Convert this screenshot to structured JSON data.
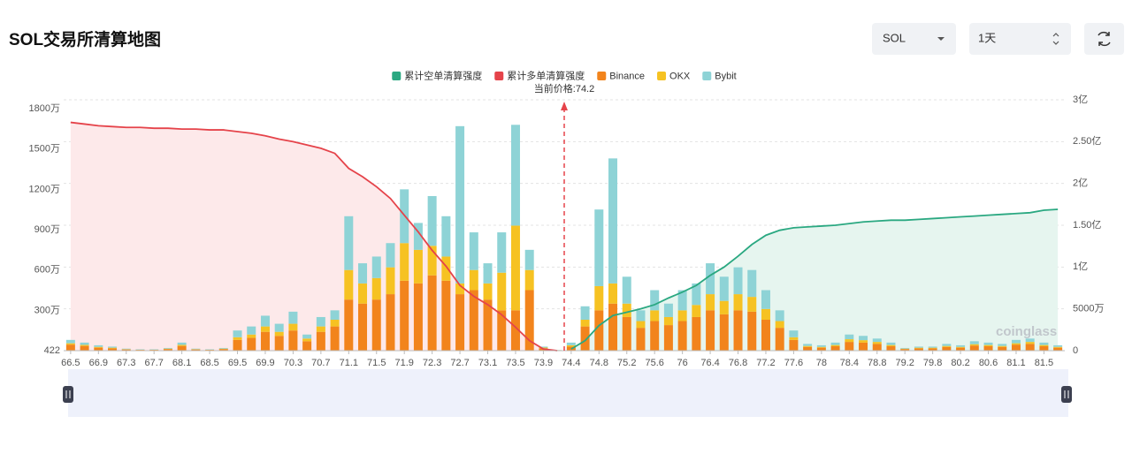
{
  "header": {
    "title": "SOL交易所清算地图"
  },
  "controls": {
    "symbol": "SOL",
    "interval": "1天"
  },
  "chart_data": {
    "type": "bar",
    "stacked": true,
    "annotation": "当前价格:74.2",
    "watermark": "coinglass",
    "categories": [
      "66.5",
      null,
      "66.9",
      null,
      "67.3",
      null,
      "67.7",
      null,
      "68.1",
      null,
      "68.5",
      null,
      "69.5",
      null,
      "69.9",
      null,
      "70.3",
      null,
      "70.7",
      null,
      "71.1",
      null,
      "71.5",
      null,
      "71.9",
      null,
      "72.3",
      null,
      "72.7",
      null,
      "73.1",
      null,
      "73.5",
      null,
      "73.9",
      null,
      "74.4",
      null,
      "74.8",
      null,
      "75.2",
      null,
      "75.6",
      null,
      "76",
      null,
      "76.4",
      null,
      "76.8",
      null,
      "77.2",
      null,
      "77.6",
      null,
      "78",
      null,
      "78.4",
      null,
      "78.8",
      null,
      "79.2",
      null,
      "79.8",
      null,
      "80.2",
      null,
      "80.6",
      null,
      "81.1",
      null,
      "81.5",
      null
    ],
    "ylim": [
      422,
      18660000
    ],
    "yticks": [
      422,
      {
        "value": 3000000,
        "label": "300万"
      },
      {
        "value": 6000000,
        "label": "600万"
      },
      {
        "value": 9000000,
        "label": "900万"
      },
      {
        "value": 12000000,
        "label": "1200万"
      },
      {
        "value": 15000000,
        "label": "1500万"
      },
      {
        "value": 18000000,
        "label": "1800万"
      }
    ],
    "y2lim": [
      0,
      300000000
    ],
    "y2ticks": [
      0,
      {
        "value": 50000000,
        "label": "5000万"
      },
      {
        "value": 100000000,
        "label": "1亿"
      },
      {
        "value": 150000000,
        "label": "1.50亿"
      },
      {
        "value": 200000000,
        "label": "2亿"
      },
      {
        "value": 250000000,
        "label": "2.50亿"
      },
      {
        "value": 300000000,
        "label": "3亿"
      }
    ],
    "grid": true,
    "series": [
      {
        "name": "累计空单清算强度",
        "type": "line",
        "axis": "y2",
        "color": "#2aa881",
        "fill": "#e6f5ef",
        "values": [
          null,
          null,
          null,
          null,
          null,
          null,
          null,
          null,
          null,
          null,
          null,
          null,
          null,
          null,
          null,
          null,
          null,
          null,
          null,
          null,
          null,
          null,
          null,
          null,
          null,
          null,
          null,
          null,
          null,
          null,
          null,
          null,
          null,
          null,
          null,
          null,
          2000000,
          12000000,
          30000000,
          42000000,
          46000000,
          50000000,
          55000000,
          63000000,
          70000000,
          78000000,
          90000000,
          100000000,
          113000000,
          127000000,
          138000000,
          144000000,
          147000000,
          148000000,
          149000000,
          150000000,
          152000000,
          154000000,
          155000000,
          156000000,
          156000000,
          157000000,
          158000000,
          159000000,
          160000000,
          161000000,
          162000000,
          163000000,
          164000000,
          165000000,
          168000000,
          169000000
        ]
      },
      {
        "name": "累计多单清算强度",
        "type": "line",
        "axis": "y2",
        "color": "#e5434a",
        "fill": "#fde9ea",
        "values": [
          273000000,
          271000000,
          269000000,
          268000000,
          267000000,
          267000000,
          266000000,
          266000000,
          265000000,
          265000000,
          264000000,
          264000000,
          262000000,
          260000000,
          257000000,
          253000000,
          250000000,
          246000000,
          242000000,
          236000000,
          218000000,
          208000000,
          196000000,
          182000000,
          162000000,
          142000000,
          120000000,
          101000000,
          78000000,
          65000000,
          55000000,
          43000000,
          28000000,
          12000000,
          2000000,
          0,
          null,
          null,
          null,
          null,
          null,
          null,
          null,
          null,
          null,
          null,
          null,
          null,
          null,
          null,
          null,
          null,
          null,
          null,
          null,
          null,
          null,
          null,
          null,
          null,
          null,
          null,
          null,
          null,
          null,
          null,
          null,
          null,
          null,
          null,
          null,
          null
        ]
      },
      {
        "name": "Binance",
        "color": "#f2841c",
        "values": [
          450000,
          350000,
          220000,
          170000,
          90000,
          60000,
          60000,
          120000,
          350000,
          90000,
          60000,
          120000,
          800000,
          950000,
          1400000,
          1100000,
          1500000,
          700000,
          1400000,
          1800000,
          3800000,
          3500000,
          3800000,
          4200000,
          5200000,
          5000000,
          5600000,
          5200000,
          4200000,
          4500000,
          3800000,
          3000000,
          3000000,
          4500000,
          180000,
          30000,
          300000,
          1800000,
          3000000,
          3500000,
          2500000,
          1700000,
          2200000,
          1900000,
          2200000,
          2500000,
          3000000,
          2700000,
          3000000,
          2900000,
          2300000,
          1700000,
          800000,
          280000,
          220000,
          330000,
          650000,
          600000,
          500000,
          330000,
          120000,
          170000,
          170000,
          280000,
          220000,
          380000,
          330000,
          280000,
          450000,
          500000,
          330000,
          220000
        ]
      },
      {
        "name": "OKX",
        "color": "#f6c222",
        "values": [
          100000,
          80000,
          60000,
          50000,
          20000,
          10000,
          10000,
          30000,
          80000,
          20000,
          10000,
          30000,
          200000,
          250000,
          400000,
          300000,
          500000,
          200000,
          400000,
          500000,
          2200000,
          1500000,
          1600000,
          2000000,
          2800000,
          2500000,
          2200000,
          1800000,
          800000,
          1500000,
          1200000,
          2800000,
          6300000,
          1500000,
          50000,
          10000,
          100000,
          500000,
          1800000,
          1500000,
          1000000,
          500000,
          800000,
          600000,
          800000,
          900000,
          1200000,
          1000000,
          1200000,
          1100000,
          800000,
          500000,
          200000,
          70000,
          60000,
          90000,
          200000,
          180000,
          150000,
          90000,
          30000,
          50000,
          50000,
          70000,
          60000,
          100000,
          90000,
          70000,
          100000,
          150000,
          90000,
          60000
        ]
      },
      {
        "name": "Bybit",
        "color": "#8ed3d6",
        "values": [
          250000,
          170000,
          120000,
          80000,
          40000,
          30000,
          30000,
          50000,
          170000,
          40000,
          30000,
          50000,
          500000,
          600000,
          800000,
          600000,
          900000,
          300000,
          700000,
          700000,
          4000000,
          1500000,
          1600000,
          1800000,
          4000000,
          2000000,
          3700000,
          3000000,
          11700000,
          2800000,
          1500000,
          3000000,
          7500000,
          1500000,
          70000,
          10000,
          200000,
          1000000,
          5700000,
          9300000,
          2000000,
          800000,
          1500000,
          1000000,
          1500000,
          1600000,
          2300000,
          1800000,
          2000000,
          2000000,
          1400000,
          800000,
          500000,
          150000,
          120000,
          180000,
          350000,
          320000,
          250000,
          180000,
          50000,
          80000,
          80000,
          150000,
          120000,
          220000,
          180000,
          150000,
          250000,
          250000,
          180000,
          120000
        ]
      }
    ]
  }
}
